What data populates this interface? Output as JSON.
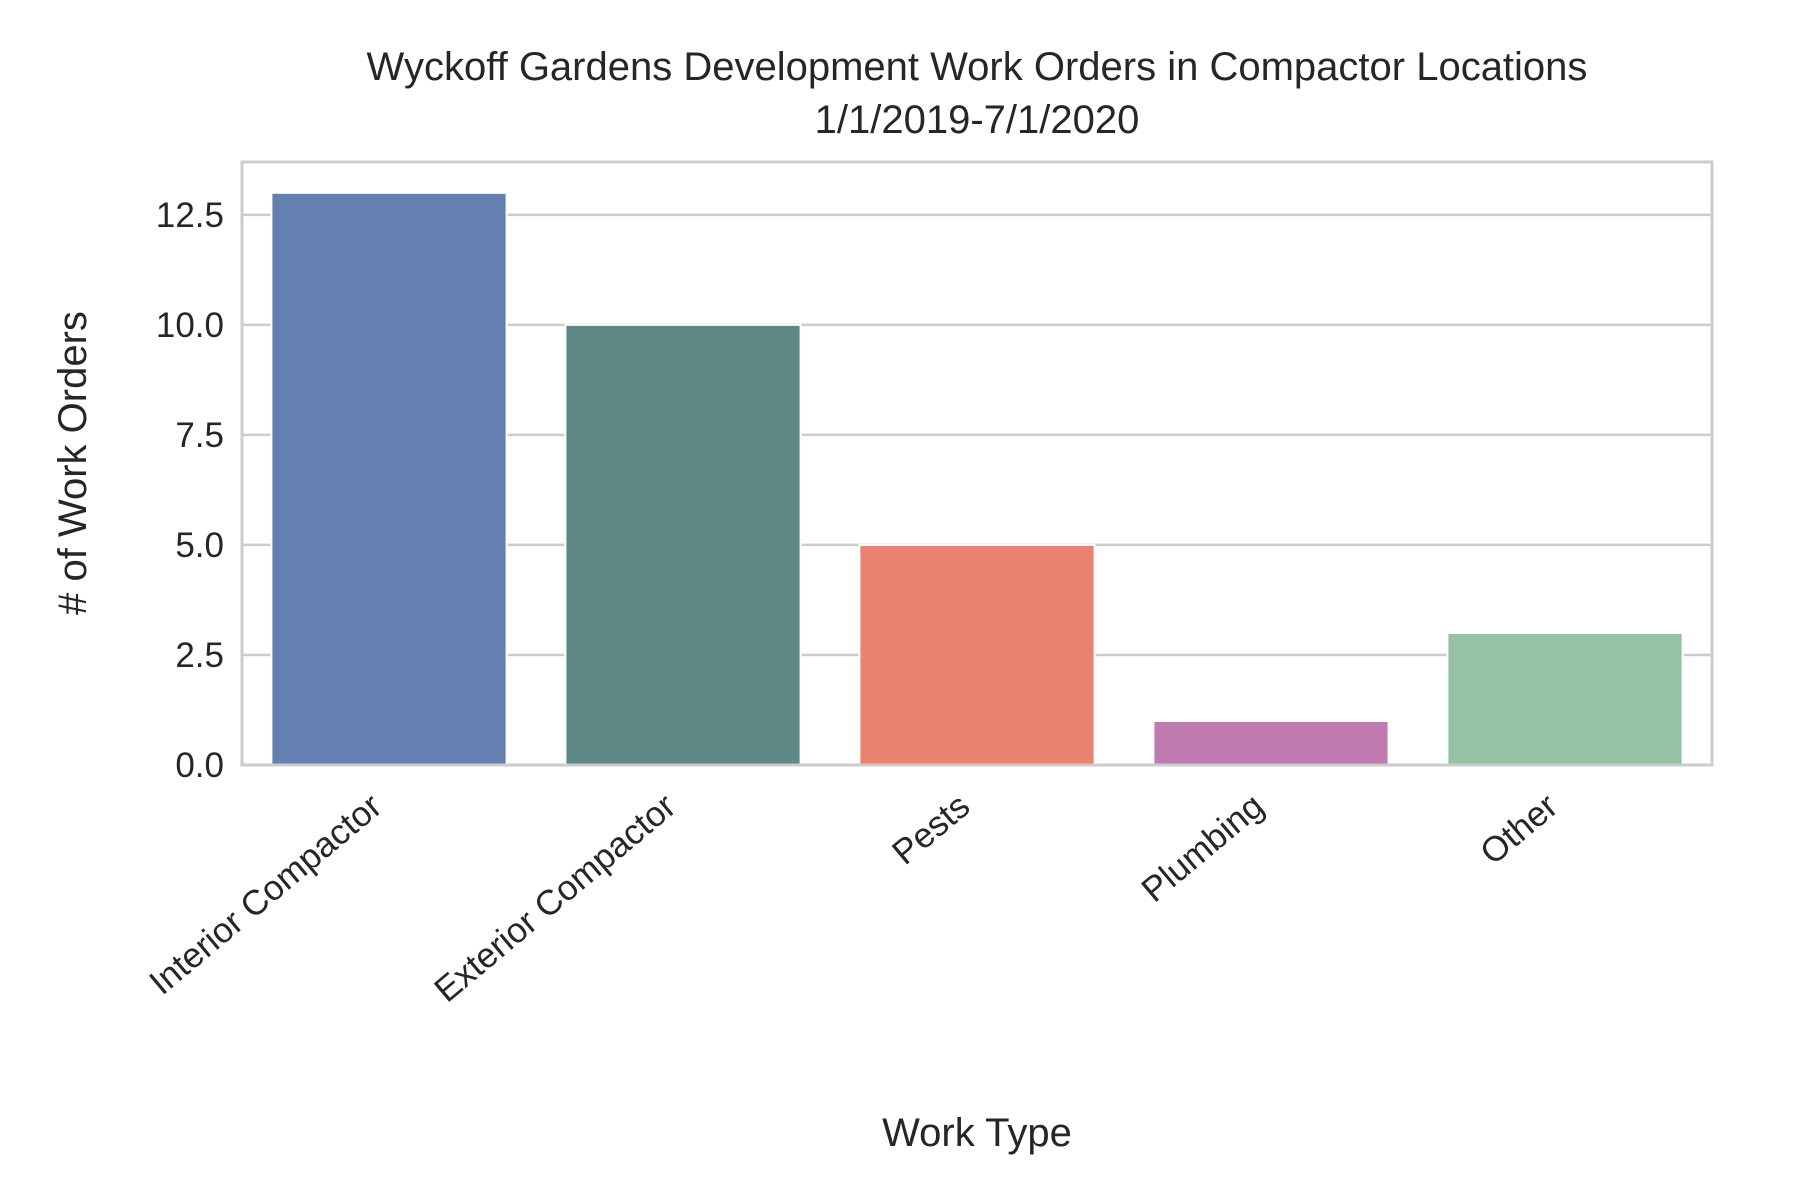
{
  "chart_data": {
    "type": "bar",
    "title_lines": [
      "Wyckoff Gardens Development Work Orders in Compactor Locations",
      "1/1/2019-7/1/2020"
    ],
    "xlabel": "Work Type",
    "ylabel": "# of Work Orders",
    "categories": [
      "Interior Compactor",
      "Exterior Compactor",
      "Pests",
      "Plumbing",
      "Other"
    ],
    "values": [
      13,
      10,
      5,
      1,
      3
    ],
    "colors": [
      "#6580b0",
      "#5e8987",
      "#e9836d",
      "#c17ab0",
      "#95c2a3"
    ],
    "ylim": [
      0,
      13.7
    ],
    "yticks": [
      0.0,
      2.5,
      5.0,
      7.5,
      10.0,
      12.5
    ],
    "ytick_labels": [
      "0.0",
      "2.5",
      "5.0",
      "7.5",
      "10.0",
      "12.5"
    ],
    "grid": true,
    "grid_axis": "y"
  }
}
